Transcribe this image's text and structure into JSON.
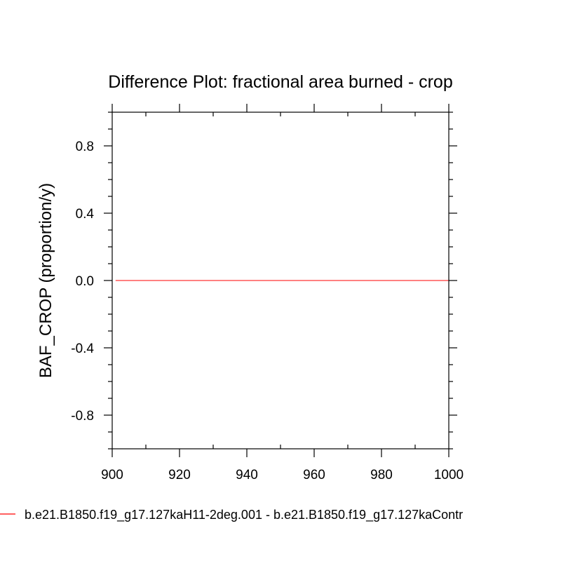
{
  "chart_data": {
    "type": "line",
    "title": "Difference Plot: fractional area burned - crop",
    "ylabel": "BAF_CROP  (proportion/y)",
    "xlabel": "",
    "xlim": [
      900,
      1000
    ],
    "ylim": [
      -1.0,
      1.0
    ],
    "x_ticks": [
      900,
      920,
      940,
      960,
      980,
      1000
    ],
    "x_tick_labels": [
      "900",
      "920",
      "940",
      "960",
      "980",
      "1000"
    ],
    "y_ticks": [
      -0.8,
      -0.4,
      0.0,
      0.4,
      0.8
    ],
    "y_tick_labels": [
      "-0.8",
      "-0.4",
      "0.0",
      "0.4",
      "0.8"
    ],
    "grid": false,
    "legend_position": "bottom",
    "series": [
      {
        "name": "b.e21.B1850.f19_g17.127kaH11-2deg.001 - b.e21.B1850.f19_g17.127kaContr",
        "color": "#ff0000",
        "x": [
          901,
          1000
        ],
        "y": [
          0.0,
          0.0
        ]
      }
    ]
  }
}
